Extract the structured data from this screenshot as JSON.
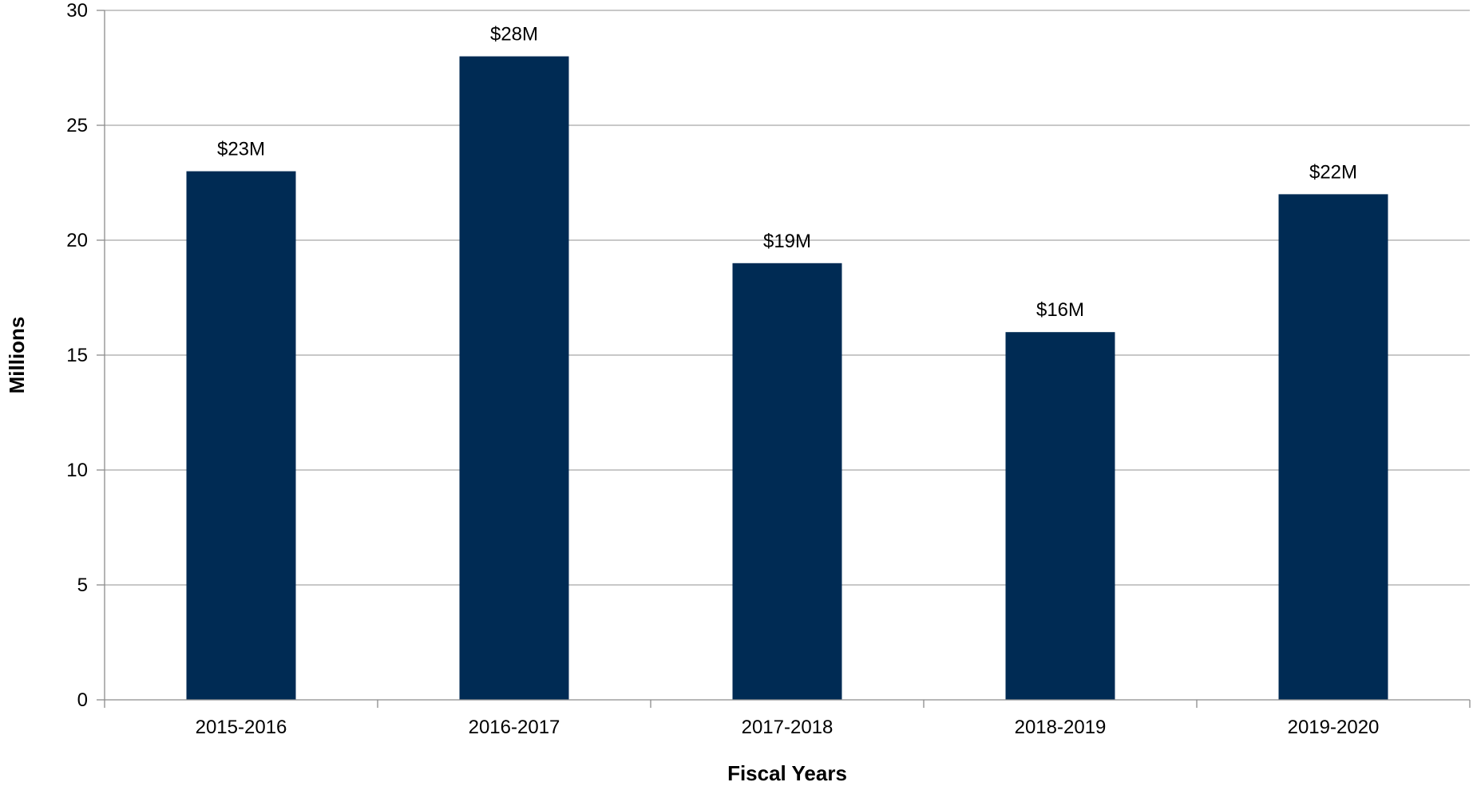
{
  "chart_data": {
    "type": "bar",
    "title": "",
    "xlabel": "Fiscal Years",
    "ylabel": "Millions",
    "categories": [
      "2015-2016",
      "2016-2017",
      "2017-2018",
      "2018-2019",
      "2019-2020"
    ],
    "values": [
      23,
      28,
      19,
      16,
      22
    ],
    "data_labels": [
      "$23M",
      "$28M",
      "$19M",
      "$16M",
      "$22M"
    ],
    "ylim": [
      0,
      30
    ],
    "yticks": [
      0,
      5,
      10,
      15,
      20,
      25,
      30
    ],
    "grid": true,
    "legend": "none",
    "bar_color": "#002B54",
    "grid_color": "#A6A6A6",
    "axis_color": "#8C8C8C"
  }
}
